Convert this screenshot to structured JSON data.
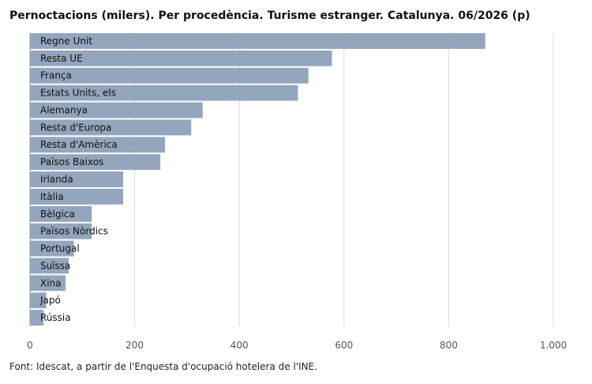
{
  "title": "Pernoctacions (milers). Per procedència. Turisme estranger. Catalunya. 06/2026 (p)",
  "footer": "Font: Idescat, a partir de l'Enquesta d'ocupació hotelera de l'INE.",
  "colors": {
    "bar": "#94a6bd",
    "grid": "#d9d9d9"
  },
  "chart_data": {
    "type": "bar",
    "orientation": "horizontal",
    "categories": [
      "Regne Unit",
      "Resta UE",
      "França",
      "Estats Units, els",
      "Alemanya",
      "Resta d'Europa",
      "Resta d'Amèrica",
      "Països Baixos",
      "Irlanda",
      "Itàlia",
      "Bèlgica",
      "Països Nòrdics",
      "Portugal",
      "Suïssa",
      "Xina",
      "Japó",
      "Rússia"
    ],
    "values": [
      870,
      577,
      532,
      512,
      330,
      308,
      258,
      249,
      178,
      178,
      118,
      118,
      84,
      74,
      68,
      31,
      26
    ],
    "xlim": [
      0,
      1000
    ],
    "xticks": [
      0,
      200,
      400,
      600,
      800,
      1000
    ],
    "xtick_labels": [
      "0",
      "200",
      "400",
      "600",
      "800",
      "1.000"
    ],
    "grid": true
  }
}
